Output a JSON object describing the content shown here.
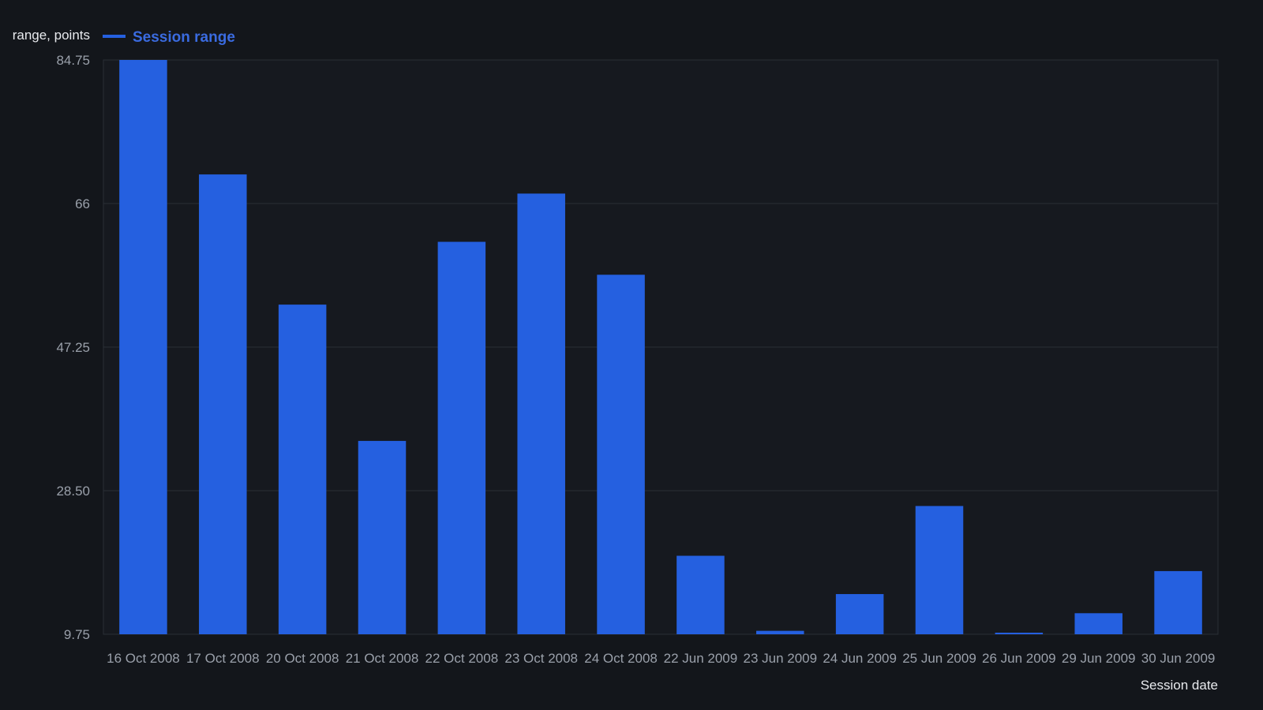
{
  "colors": {
    "background": "#13161b",
    "plot_background": "#16191f",
    "bar": "#2560e0",
    "legend_text": "#3a6be0",
    "axis_text": "#9aa0aa",
    "title_text": "#e8eaee",
    "grid": "#2a2e36"
  },
  "chart_data": {
    "type": "bar",
    "ylabel": "range, points",
    "xlabel": "Session date",
    "legend": {
      "position": "top-left"
    },
    "grid": true,
    "ylim": [
      9.75,
      84.75
    ],
    "yticks": [
      "84.75",
      "66",
      "47.25",
      "28.50",
      "9.75"
    ],
    "categories": [
      "16 Oct 2008",
      "17 Oct 2008",
      "20 Oct 2008",
      "21 Oct 2008",
      "22 Oct 2008",
      "23 Oct 2008",
      "24 Oct 2008",
      "22 Jun 2009",
      "23 Jun 2009",
      "24 Jun 2009",
      "25 Jun 2009",
      "26 Jun 2009",
      "29 Jun 2009",
      "30 Jun 2009"
    ],
    "series": [
      {
        "name": "Session range",
        "values": [
          84.75,
          69.8,
          52.8,
          35.0,
          61.0,
          67.3,
          56.7,
          20.0,
          10.2,
          15.0,
          26.5,
          9.6,
          12.5,
          18.0
        ]
      }
    ]
  }
}
